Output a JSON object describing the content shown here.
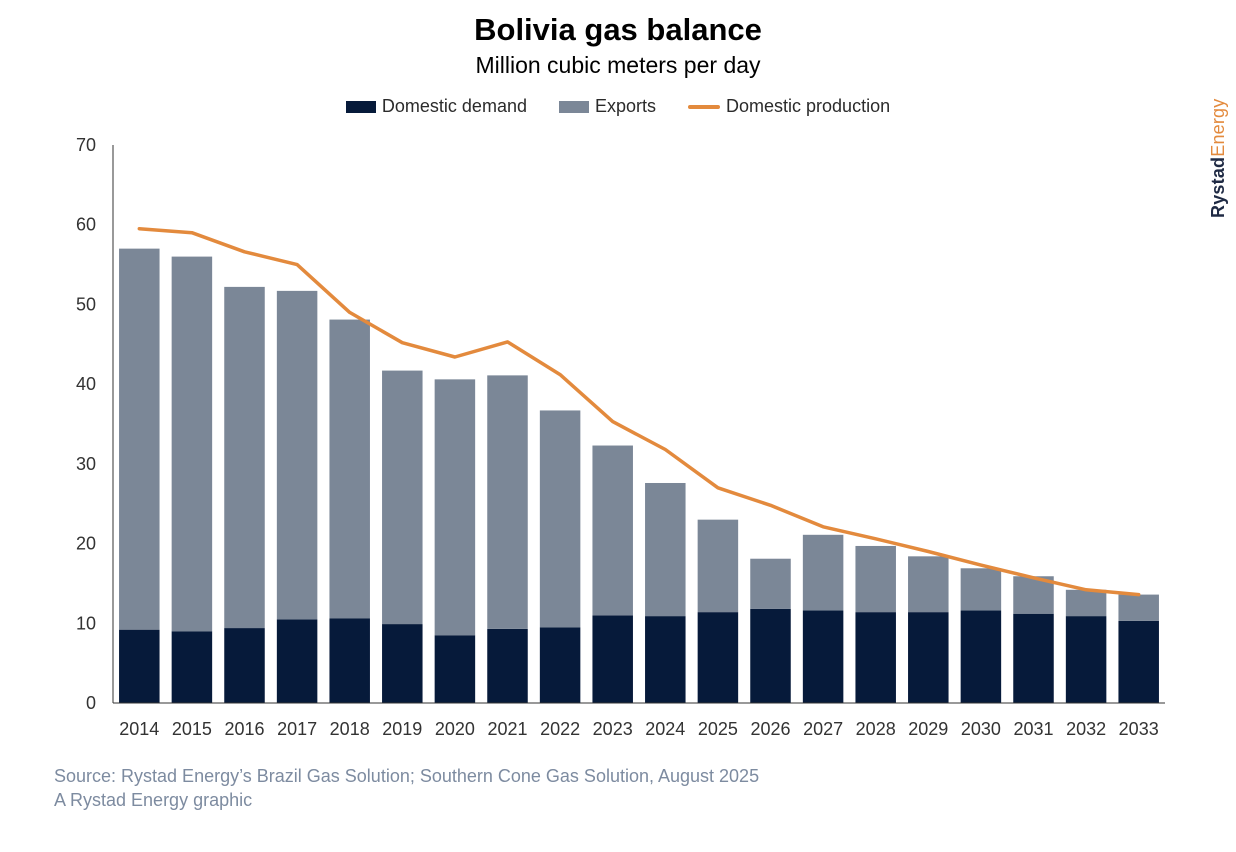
{
  "header": {
    "title": "Bolivia gas balance",
    "subtitle": "Million cubic meters per day"
  },
  "brand": {
    "part1": "Rystad",
    "part2": "Energy"
  },
  "footer": {
    "source": "Source: Rystad Energy’s Brazil Gas Solution; Southern Cone Gas Solution, August 2025",
    "credit": "A Rystad Energy graphic"
  },
  "colors": {
    "domestic_demand": "#061a3a",
    "exports": "#7b8797",
    "domestic_production": "#e38a3d"
  },
  "chart_data": {
    "type": "bar",
    "stacked": true,
    "title": "Bolivia gas balance",
    "subtitle": "Million cubic meters per day",
    "xlabel": "",
    "ylabel": "",
    "ylim": [
      0,
      70
    ],
    "yticks": [
      0,
      10,
      20,
      30,
      40,
      50,
      60,
      70
    ],
    "grid": false,
    "legend_position": "top",
    "categories": [
      "2014",
      "2015",
      "2016",
      "2017",
      "2018",
      "2019",
      "2020",
      "2021",
      "2022",
      "2023",
      "2024",
      "2025",
      "2026",
      "2027",
      "2028",
      "2029",
      "2030",
      "2031",
      "2032",
      "2033"
    ],
    "series": [
      {
        "name": "Domestic demand",
        "type": "bar",
        "values": [
          9.2,
          9.0,
          9.4,
          10.5,
          10.6,
          9.9,
          8.5,
          9.3,
          9.5,
          11.0,
          10.9,
          11.4,
          11.8,
          11.6,
          11.4,
          11.4,
          11.6,
          11.2,
          10.9,
          10.3
        ]
      },
      {
        "name": "Exports",
        "type": "bar",
        "values": [
          47.8,
          47.0,
          42.8,
          41.2,
          37.5,
          31.8,
          32.1,
          31.8,
          27.2,
          21.3,
          16.7,
          11.6,
          6.3,
          9.5,
          8.3,
          7.0,
          5.3,
          4.7,
          3.3,
          3.3
        ]
      },
      {
        "name": "Domestic production",
        "type": "line",
        "values": [
          59.5,
          59.0,
          56.6,
          55.0,
          49.0,
          45.2,
          43.4,
          45.3,
          41.2,
          35.3,
          31.8,
          27.0,
          24.8,
          22.1,
          20.6,
          19.0,
          17.3,
          15.7,
          14.2,
          13.6
        ]
      }
    ]
  }
}
